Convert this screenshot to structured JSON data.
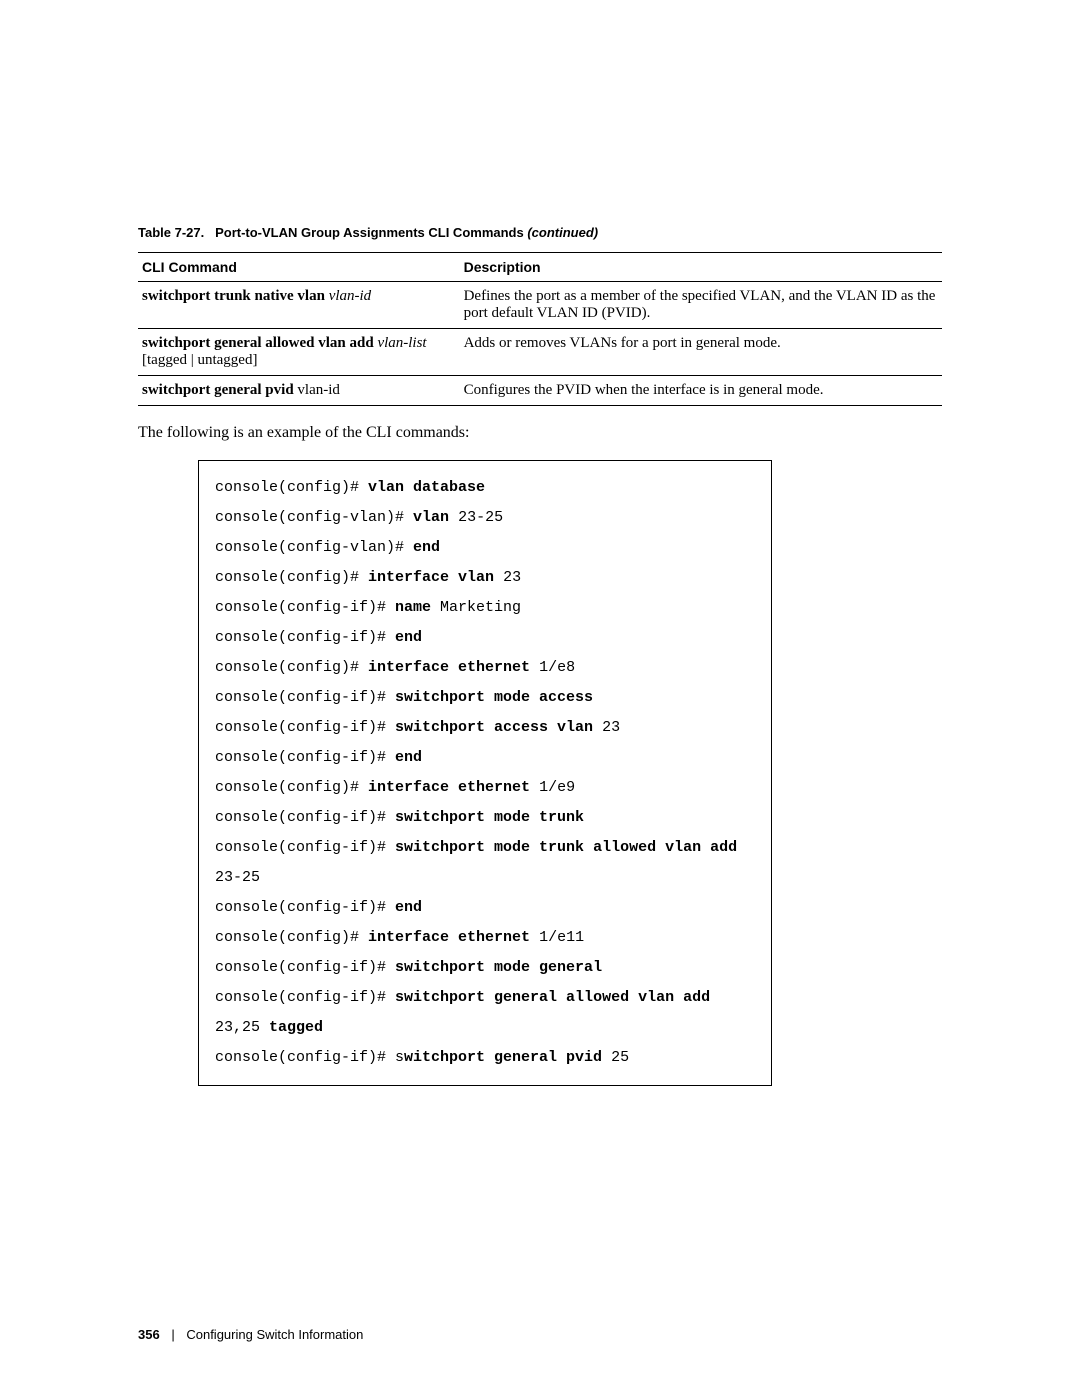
{
  "table": {
    "caption_prefix": "Table 7-27.",
    "caption_title": "Port-to-VLAN Group Assignments CLI Commands",
    "caption_suffix": "(continued)",
    "headers": {
      "command": "CLI Command",
      "description": "Description"
    },
    "rows": [
      {
        "cmd_bold": "switchport trunk native vlan",
        "cmd_italic": "vlan-id",
        "cmd_plain": "",
        "desc": "Defines the port as a member of the specified VLAN, and the VLAN ID as the port default VLAN ID (PVID)."
      },
      {
        "cmd_bold": "switchport general allowed vlan add",
        "cmd_italic": "vlan-list",
        "cmd_plain": "[tagged | untagged]",
        "desc": "Adds or removes VLANs for a port in general mode."
      },
      {
        "cmd_bold": "switchport general pvid",
        "cmd_italic": "",
        "cmd_plain": "vlan-id",
        "desc": "Configures the PVID when the interface is in general mode."
      }
    ]
  },
  "body_text": "The following is an example of the CLI commands:",
  "cli_lines": [
    {
      "prefix": "console(config)# ",
      "bold": "vlan database",
      "suffix": ""
    },
    {
      "prefix": "console(config-vlan)# ",
      "bold": "vlan",
      "suffix": " 23-25"
    },
    {
      "prefix": "console(config-vlan)# ",
      "bold": "end",
      "suffix": ""
    },
    {
      "prefix": "console(config)# ",
      "bold": "interface vlan",
      "suffix": " 23"
    },
    {
      "prefix": "console(config-if)# ",
      "bold": "name",
      "suffix": " Marketing"
    },
    {
      "prefix": "console(config-if)# ",
      "bold": "end",
      "suffix": ""
    },
    {
      "prefix": "console(config)# ",
      "bold": "interface ethernet",
      "suffix": " 1/e8"
    },
    {
      "prefix": "console(config-if)# ",
      "bold": "switchport mode access",
      "suffix": ""
    },
    {
      "prefix": "console(config-if)# ",
      "bold": "switchport access vlan",
      "suffix": " 23"
    },
    {
      "prefix": "console(config-if)# ",
      "bold": "end",
      "suffix": ""
    },
    {
      "prefix": "console(config)# ",
      "bold": "interface ethernet",
      "suffix": " 1/e9"
    },
    {
      "prefix": "console(config-if)# ",
      "bold": "switchport mode trunk",
      "suffix": ""
    },
    {
      "prefix": "console(config-if)# ",
      "bold": "switchport mode trunk allowed vlan add",
      "suffix": " 23-25"
    },
    {
      "prefix": "console(config-if)# ",
      "bold": "end",
      "suffix": ""
    },
    {
      "prefix": "console(config)# ",
      "bold": "interface ethernet",
      "suffix": " 1/e11"
    },
    {
      "prefix": "console(config-if)# ",
      "bold": "switchport mode general",
      "suffix": ""
    },
    {
      "prefix": "console(config-if)# ",
      "bold": "switchport general allowed vlan add",
      "suffix_pre": " 23,25 ",
      "bold2": "tagged",
      "suffix": ""
    },
    {
      "prefix": "console(config-if)# s",
      "bold": "witchport general pvid",
      "suffix": " 25"
    }
  ],
  "footer": {
    "page": "356",
    "divider": "|",
    "section": "Configuring Switch Information"
  }
}
